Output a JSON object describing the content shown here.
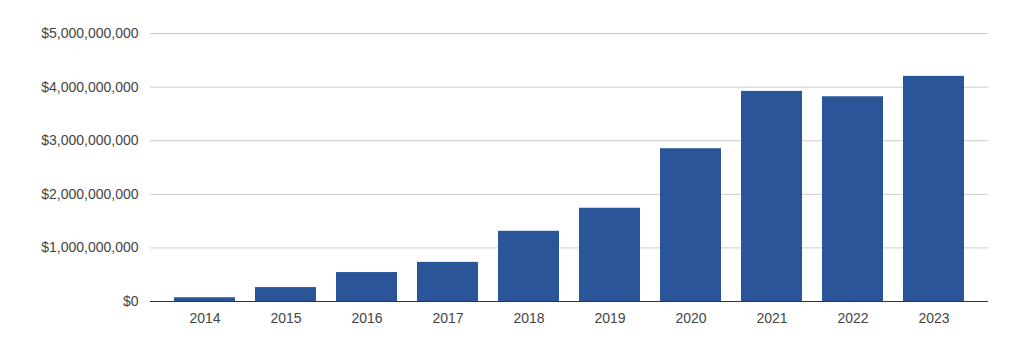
{
  "chart_data": {
    "type": "bar",
    "categories": [
      "2014",
      "2015",
      "2016",
      "2017",
      "2018",
      "2019",
      "2020",
      "2021",
      "2022",
      "2023"
    ],
    "values": [
      70000000,
      260000000,
      540000000,
      730000000,
      1310000000,
      1740000000,
      2850000000,
      3920000000,
      3820000000,
      4200000000
    ],
    "color": "#2a5699",
    "ylim": [
      0,
      5000000000
    ],
    "yticks": [
      {
        "value": 0,
        "label": "$0"
      },
      {
        "value": 1000000000,
        "label": "$1,000,000,000"
      },
      {
        "value": 2000000000,
        "label": "$2,000,000,000"
      },
      {
        "value": 3000000000,
        "label": "$3,000,000,000"
      },
      {
        "value": 4000000000,
        "label": "$4,000,000,000"
      },
      {
        "value": 5000000000,
        "label": "$5,000,000,000"
      }
    ],
    "grid": true
  }
}
